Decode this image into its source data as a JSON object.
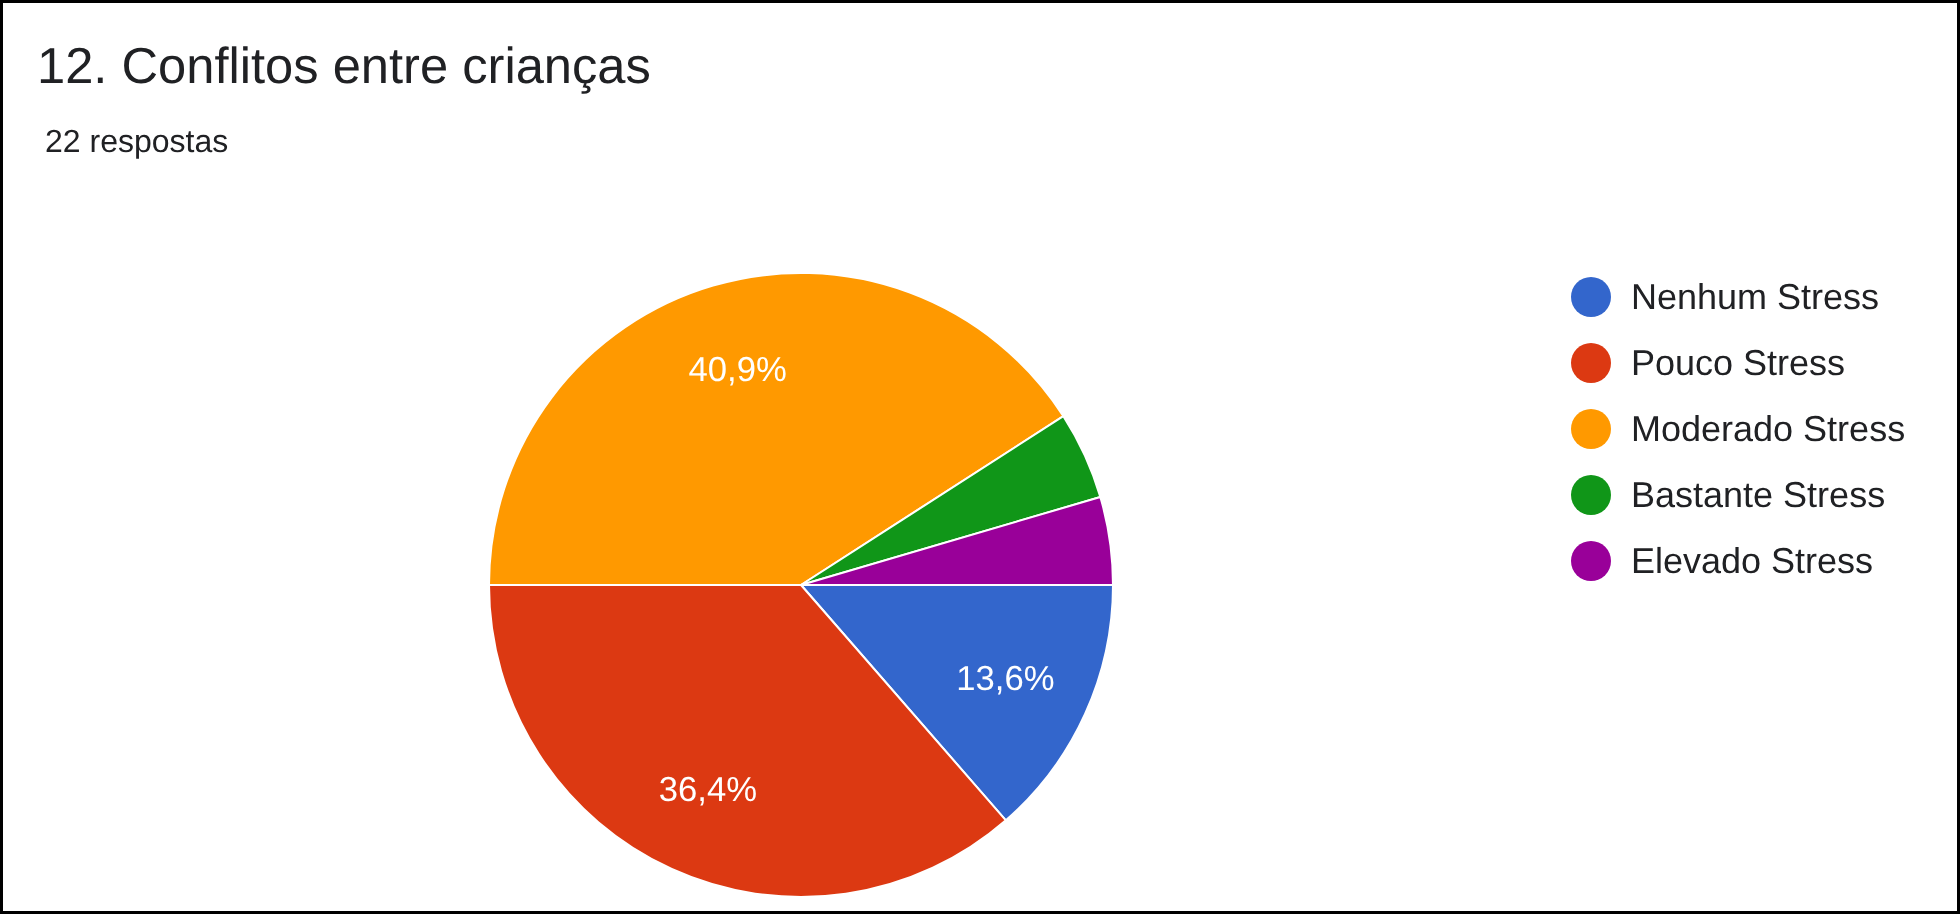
{
  "chart_data": {
    "type": "pie",
    "title": "12. Conflitos entre crianças",
    "subtitle": "22 respostas",
    "categories": [
      "Nenhum Stress",
      "Pouco Stress",
      "Moderado Stress",
      "Bastante Stress",
      "Elevado Stress"
    ],
    "values": [
      13.6,
      36.4,
      40.9,
      4.55,
      4.55
    ],
    "value_labels": [
      "13,6%",
      "36,4%",
      "40,9%",
      null,
      null
    ],
    "colors": [
      "#3366cc",
      "#dc3912",
      "#ff9900",
      "#109618",
      "#990099"
    ],
    "legend": "right"
  }
}
